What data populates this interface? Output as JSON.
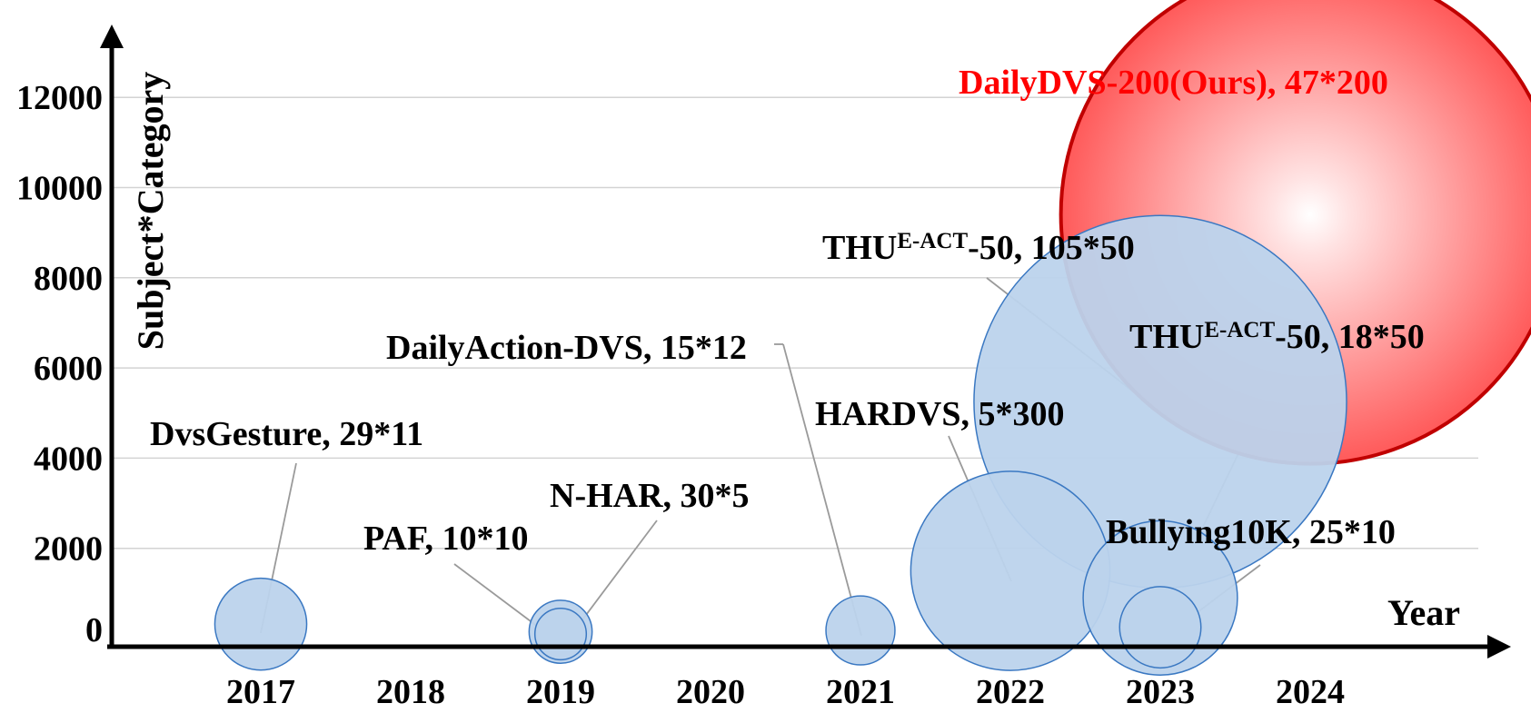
{
  "chart_data": {
    "type": "scatter",
    "subtype": "bubble",
    "xlabel": "Year",
    "ylabel": "Subject*Category",
    "x_ticks": [
      "2017",
      "2018",
      "2019",
      "2020",
      "2021",
      "2022",
      "2023",
      "2024"
    ],
    "y_ticks": [
      "0",
      "2000",
      "4000",
      "6000",
      "8000",
      "10000",
      "12000"
    ],
    "ylim": [
      0,
      12000
    ],
    "grid": "horizontal",
    "points": [
      {
        "id": "dvsgesture",
        "x": 2017,
        "y": 319,
        "size": 319,
        "label": "DvsGesture, 29*11",
        "color": "blue"
      },
      {
        "id": "paf",
        "x": 2019,
        "y": 100,
        "size": 100,
        "label": "PAF, 10*10",
        "color": "blue"
      },
      {
        "id": "nhar",
        "x": 2019,
        "y": 150,
        "size": 150,
        "label": "N-HAR, 30*5",
        "color": "blue"
      },
      {
        "id": "dailyaction",
        "x": 2021,
        "y": 180,
        "size": 180,
        "label": "DailyAction-DVS, 15*12",
        "color": "blue"
      },
      {
        "id": "hardvs",
        "x": 2022,
        "y": 1500,
        "size": 1500,
        "label": "HARDVS, 5*300",
        "color": "blue"
      },
      {
        "id": "thu105",
        "x": 2023,
        "y": 5250,
        "size": 5250,
        "label_main": "THU",
        "label_sup": "E-ACT",
        "label_rest": "-50, 105*50",
        "color": "blue"
      },
      {
        "id": "thu18",
        "x": 2023,
        "y": 900,
        "size": 900,
        "label_main": "THU",
        "label_sup": "E-ACT",
        "label_rest": "-50, 18*50",
        "color": "blue"
      },
      {
        "id": "bullying",
        "x": 2023,
        "y": 250,
        "size": 250,
        "label": "Bullying10K, 25*10",
        "color": "blue"
      },
      {
        "id": "dailydvs",
        "x": 2024,
        "y": 9400,
        "size": 9400,
        "label": "DailyDVS-200(Ours), 47*200",
        "color": "red"
      }
    ],
    "colors": {
      "blue_fill": "#bcd3ec",
      "blue_stroke": "#3a78c2",
      "red_fill": "#ff6b6b",
      "red_stroke": "#c00000",
      "red_text": "#ff0000",
      "leader": "#9a9a9a",
      "grid": "#d3d3d3"
    }
  }
}
